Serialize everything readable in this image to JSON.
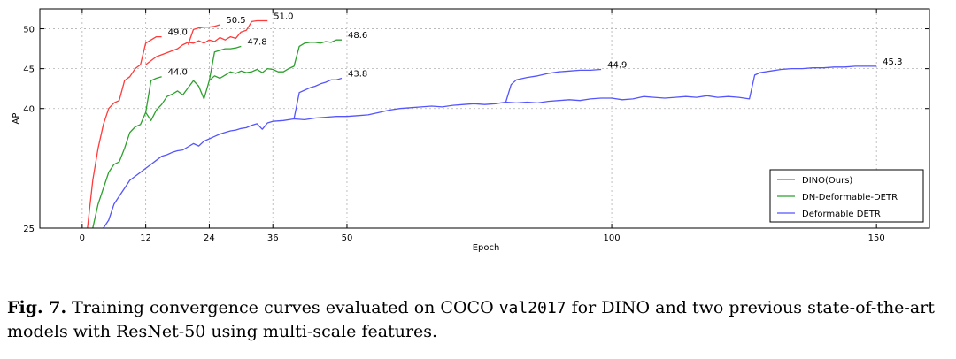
{
  "chart_data": {
    "type": "line",
    "title": "",
    "xlabel": "Epoch",
    "ylabel": "AP",
    "xlim": [
      -8,
      160
    ],
    "ylim": [
      25,
      52.5
    ],
    "x_ticks": [
      0,
      12,
      24,
      36,
      50,
      100,
      150
    ],
    "y_ticks": [
      25,
      40,
      45,
      50
    ],
    "grid": true,
    "legend_position": "lower-right",
    "series": [
      {
        "name": "DINO(Ours)",
        "color": "#ff3b3b",
        "segments": [
          [
            [
              1,
              25
            ],
            [
              2,
              31
            ],
            [
              3,
              35
            ],
            [
              4,
              38
            ],
            [
              5,
              40
            ],
            [
              6,
              40.7
            ],
            [
              7,
              41
            ],
            [
              8,
              43.5
            ],
            [
              9,
              44
            ],
            [
              10,
              45
            ],
            [
              11,
              45.5
            ],
            [
              12,
              48.2
            ],
            [
              13,
              48.6
            ],
            [
              14,
              49
            ],
            [
              15,
              49
            ]
          ],
          [
            [
              12,
              45.5
            ],
            [
              14,
              46.5
            ],
            [
              16,
              47
            ],
            [
              18,
              47.5
            ],
            [
              19,
              48
            ],
            [
              20,
              48.3
            ],
            [
              21,
              48.2
            ],
            [
              22,
              48.5
            ],
            [
              23,
              48.2
            ],
            [
              24,
              48.6
            ],
            [
              25,
              48.4
            ],
            [
              26,
              48.9
            ],
            [
              27,
              48.6
            ],
            [
              28,
              49
            ],
            [
              29,
              48.8
            ],
            [
              30,
              49.6
            ],
            [
              31,
              49.8
            ],
            [
              32,
              50.9
            ],
            [
              33,
              51.0
            ],
            [
              34,
              51.0
            ],
            [
              35,
              51.0
            ]
          ],
          [
            [
              20,
              48
            ],
            [
              21,
              49.9
            ],
            [
              22,
              50.1
            ],
            [
              23,
              50.2
            ],
            [
              24,
              50.2
            ],
            [
              25,
              50.3
            ],
            [
              26,
              50.5
            ]
          ]
        ],
        "end_labels": [
          {
            "x": 15,
            "y": 49.0,
            "text": "49.0"
          },
          {
            "x": 26,
            "y": 50.5,
            "text": "50.5"
          },
          {
            "x": 35,
            "y": 51.0,
            "text": "51.0"
          }
        ]
      },
      {
        "name": "DN-Deformable-DETR",
        "color": "#2ca02c",
        "segments": [
          [
            [
              2,
              25
            ],
            [
              3,
              28
            ],
            [
              4,
              30
            ],
            [
              5,
              32
            ],
            [
              6,
              33
            ],
            [
              7,
              33.3
            ],
            [
              8,
              35
            ],
            [
              9,
              37
            ],
            [
              10,
              37.7
            ],
            [
              11,
              38
            ],
            [
              12,
              39.5
            ],
            [
              13,
              38.5
            ],
            [
              14,
              39.8
            ],
            [
              15,
              40.5
            ],
            [
              16,
              41.5
            ],
            [
              17,
              41.8
            ],
            [
              18,
              42.2
            ],
            [
              19,
              41.7
            ],
            [
              20,
              42.6
            ],
            [
              21,
              43.5
            ],
            [
              22,
              42.8
            ],
            [
              23,
              41.2
            ],
            [
              24,
              43.5
            ],
            [
              25,
              44.1
            ],
            [
              26,
              43.8
            ],
            [
              27,
              44.2
            ],
            [
              28,
              44.6
            ],
            [
              29,
              44.4
            ],
            [
              30,
              44.7
            ],
            [
              31,
              44.5
            ],
            [
              32,
              44.6
            ],
            [
              33,
              44.9
            ],
            [
              34,
              44.5
            ],
            [
              35,
              45
            ],
            [
              36,
              44.9
            ],
            [
              37,
              44.6
            ],
            [
              38,
              44.6
            ],
            [
              39,
              45
            ],
            [
              40,
              45.3
            ],
            [
              41,
              47.8
            ],
            [
              42,
              48.2
            ],
            [
              43,
              48.3
            ],
            [
              44,
              48.3
            ],
            [
              45,
              48.2
            ],
            [
              46,
              48.4
            ],
            [
              47,
              48.3
            ],
            [
              48,
              48.6
            ],
            [
              49,
              48.6
            ]
          ],
          [
            [
              12,
              39.5
            ],
            [
              13,
              43.5
            ],
            [
              14,
              43.8
            ],
            [
              15,
              44.0
            ]
          ],
          [
            [
              24,
              43.5
            ],
            [
              25,
              47.1
            ],
            [
              26,
              47.3
            ],
            [
              27,
              47.5
            ],
            [
              28,
              47.5
            ],
            [
              29,
              47.6
            ],
            [
              30,
              47.8
            ]
          ]
        ],
        "end_labels": [
          {
            "x": 15,
            "y": 44.0,
            "text": "44.0"
          },
          {
            "x": 30,
            "y": 47.8,
            "text": "47.8"
          },
          {
            "x": 49,
            "y": 48.6,
            "text": "48.6"
          }
        ]
      },
      {
        "name": "Deformable DETR",
        "color": "#5555ff",
        "segments": [
          [
            [
              4,
              25
            ],
            [
              5,
              26
            ],
            [
              6,
              28
            ],
            [
              7,
              29
            ],
            [
              8,
              30
            ],
            [
              9,
              31
            ],
            [
              10,
              31.5
            ],
            [
              11,
              32
            ],
            [
              12,
              32.5
            ],
            [
              13,
              33
            ],
            [
              14,
              33.5
            ],
            [
              15,
              34
            ],
            [
              16,
              34.2
            ],
            [
              17,
              34.5
            ],
            [
              18,
              34.7
            ],
            [
              19,
              34.8
            ],
            [
              20,
              35.2
            ],
            [
              21,
              35.6
            ],
            [
              22,
              35.3
            ],
            [
              23,
              35.9
            ],
            [
              24,
              36.2
            ],
            [
              25,
              36.5
            ],
            [
              26,
              36.8
            ],
            [
              27,
              37
            ],
            [
              28,
              37.2
            ],
            [
              29,
              37.3
            ],
            [
              30,
              37.5
            ],
            [
              31,
              37.6
            ],
            [
              32,
              37.9
            ],
            [
              33,
              38.1
            ],
            [
              34,
              37.4
            ],
            [
              35,
              38.2
            ],
            [
              36,
              38.4
            ],
            [
              38,
              38.5
            ],
            [
              40,
              38.7
            ],
            [
              42,
              38.6
            ],
            [
              44,
              38.8
            ],
            [
              46,
              38.9
            ],
            [
              48,
              39
            ],
            [
              50,
              39
            ],
            [
              52,
              39.1
            ],
            [
              54,
              39.2
            ],
            [
              56,
              39.5
            ],
            [
              58,
              39.8
            ],
            [
              60,
              40
            ],
            [
              62,
              40.1
            ],
            [
              64,
              40.2
            ],
            [
              66,
              40.3
            ],
            [
              68,
              40.2
            ],
            [
              70,
              40.4
            ],
            [
              72,
              40.5
            ],
            [
              74,
              40.6
            ],
            [
              76,
              40.5
            ],
            [
              78,
              40.6
            ],
            [
              80,
              40.8
            ],
            [
              82,
              40.7
            ],
            [
              84,
              40.8
            ],
            [
              86,
              40.7
            ],
            [
              88,
              40.9
            ],
            [
              90,
              41
            ],
            [
              92,
              41.1
            ],
            [
              94,
              41
            ],
            [
              96,
              41.2
            ],
            [
              98,
              41.3
            ],
            [
              100,
              41.3
            ],
            [
              102,
              41.1
            ],
            [
              104,
              41.2
            ],
            [
              106,
              41.5
            ],
            [
              108,
              41.4
            ],
            [
              110,
              41.3
            ],
            [
              112,
              41.4
            ],
            [
              114,
              41.5
            ],
            [
              116,
              41.4
            ],
            [
              118,
              41.6
            ],
            [
              120,
              41.4
            ],
            [
              122,
              41.5
            ],
            [
              124,
              41.4
            ],
            [
              126,
              41.2
            ],
            [
              127,
              44.2
            ],
            [
              128,
              44.5
            ],
            [
              130,
              44.7
            ],
            [
              132,
              44.9
            ],
            [
              134,
              45
            ],
            [
              136,
              45
            ],
            [
              138,
              45.1
            ],
            [
              140,
              45.1
            ],
            [
              142,
              45.2
            ],
            [
              144,
              45.2
            ],
            [
              146,
              45.3
            ],
            [
              148,
              45.3
            ],
            [
              150,
              45.3
            ]
          ],
          [
            [
              40,
              38.7
            ],
            [
              41,
              42
            ],
            [
              42,
              42.3
            ],
            [
              43,
              42.6
            ],
            [
              44,
              42.8
            ],
            [
              45,
              43.1
            ],
            [
              46,
              43.3
            ],
            [
              47,
              43.6
            ],
            [
              48,
              43.6
            ],
            [
              49,
              43.8
            ]
          ],
          [
            [
              80,
              40.8
            ],
            [
              81,
              43
            ],
            [
              82,
              43.6
            ],
            [
              84,
              43.9
            ],
            [
              86,
              44.1
            ],
            [
              88,
              44.4
            ],
            [
              90,
              44.6
            ],
            [
              92,
              44.7
            ],
            [
              94,
              44.8
            ],
            [
              96,
              44.8
            ],
            [
              98,
              44.9
            ]
          ]
        ],
        "end_labels": [
          {
            "x": 49,
            "y": 43.8,
            "text": "43.8"
          },
          {
            "x": 98,
            "y": 44.9,
            "text": "44.9"
          },
          {
            "x": 150,
            "y": 45.3,
            "text": "45.3"
          }
        ]
      }
    ]
  },
  "caption": {
    "label": "Fig. 7.",
    "text_before": " Training convergence curves evaluated on COCO ",
    "mono": "val2017",
    "text_after": " for DINO and two previous state-of-the-art models with ResNet-50 using multi-scale features."
  }
}
